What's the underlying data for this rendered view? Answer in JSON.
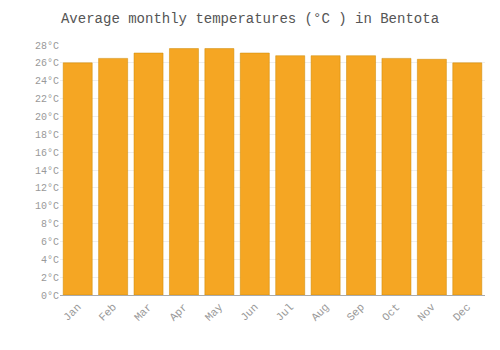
{
  "chart_data": {
    "type": "bar",
    "title": "Average monthly temperatures (°C ) in Bentota",
    "categories": [
      "Jan",
      "Feb",
      "Mar",
      "Apr",
      "May",
      "Jun",
      "Jul",
      "Aug",
      "Sep",
      "Oct",
      "Nov",
      "Dec"
    ],
    "values": [
      26.0,
      26.5,
      27.1,
      27.6,
      27.6,
      27.1,
      26.8,
      26.8,
      26.8,
      26.5,
      26.4,
      26.0
    ],
    "color": "#F5A623",
    "ylim": [
      0,
      28
    ],
    "yticks": [
      {
        "value": 0,
        "label": "0°C"
      },
      {
        "value": 2,
        "label": "2°C"
      },
      {
        "value": 4,
        "label": "4°C"
      },
      {
        "value": 6,
        "label": "6°C"
      },
      {
        "value": 8,
        "label": "8°C"
      },
      {
        "value": 10,
        "label": "10°C"
      },
      {
        "value": 12,
        "label": "12°C"
      },
      {
        "value": 14,
        "label": "14°C"
      },
      {
        "value": 16,
        "label": "16°C"
      },
      {
        "value": 18,
        "label": "18°C"
      },
      {
        "value": 20,
        "label": "20°C"
      },
      {
        "value": 22,
        "label": "22°C"
      },
      {
        "value": 24,
        "label": "24°C"
      },
      {
        "value": 26,
        "label": "26°C"
      },
      {
        "value": 28,
        "label": "28°C"
      }
    ],
    "grid": true
  }
}
